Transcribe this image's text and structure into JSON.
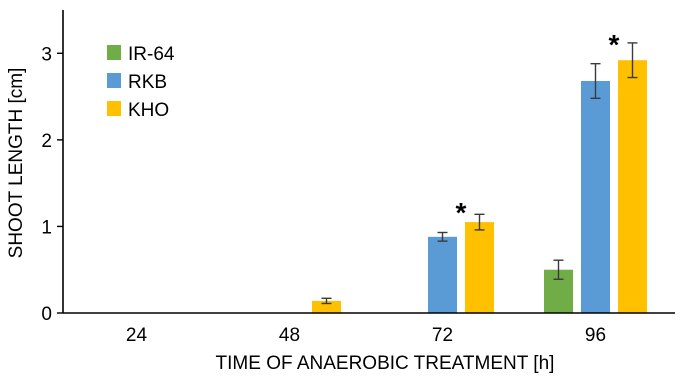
{
  "chart_data": {
    "type": "bar",
    "title": "",
    "xlabel": "TIME OF ANAEROBIC TREATMENT [h]",
    "ylabel": "SHOOT LENGTH [cm]",
    "categories": [
      "24",
      "48",
      "72",
      "96"
    ],
    "ylim": [
      0,
      3.5
    ],
    "yticks": [
      "0",
      "1",
      "2",
      "3"
    ],
    "grid": false,
    "legend_position": "top-left",
    "series": [
      {
        "name": "IR-64",
        "color": "#70ad47",
        "values": [
          0,
          0,
          0,
          0.5
        ],
        "errors": [
          0,
          0,
          0,
          0.11
        ]
      },
      {
        "name": "RKB",
        "color": "#5b9bd5",
        "values": [
          0,
          0,
          0.88,
          2.68
        ],
        "errors": [
          0,
          0,
          0.05,
          0.2
        ]
      },
      {
        "name": "KHO",
        "color": "#ffc000",
        "values": [
          0,
          0.14,
          1.05,
          2.92
        ],
        "errors": [
          0,
          0.03,
          0.09,
          0.2
        ]
      }
    ],
    "annotations": [
      {
        "text": "*",
        "category": "72",
        "value": 1.26
      },
      {
        "text": "*",
        "category": "96",
        "value": 3.2
      }
    ]
  }
}
